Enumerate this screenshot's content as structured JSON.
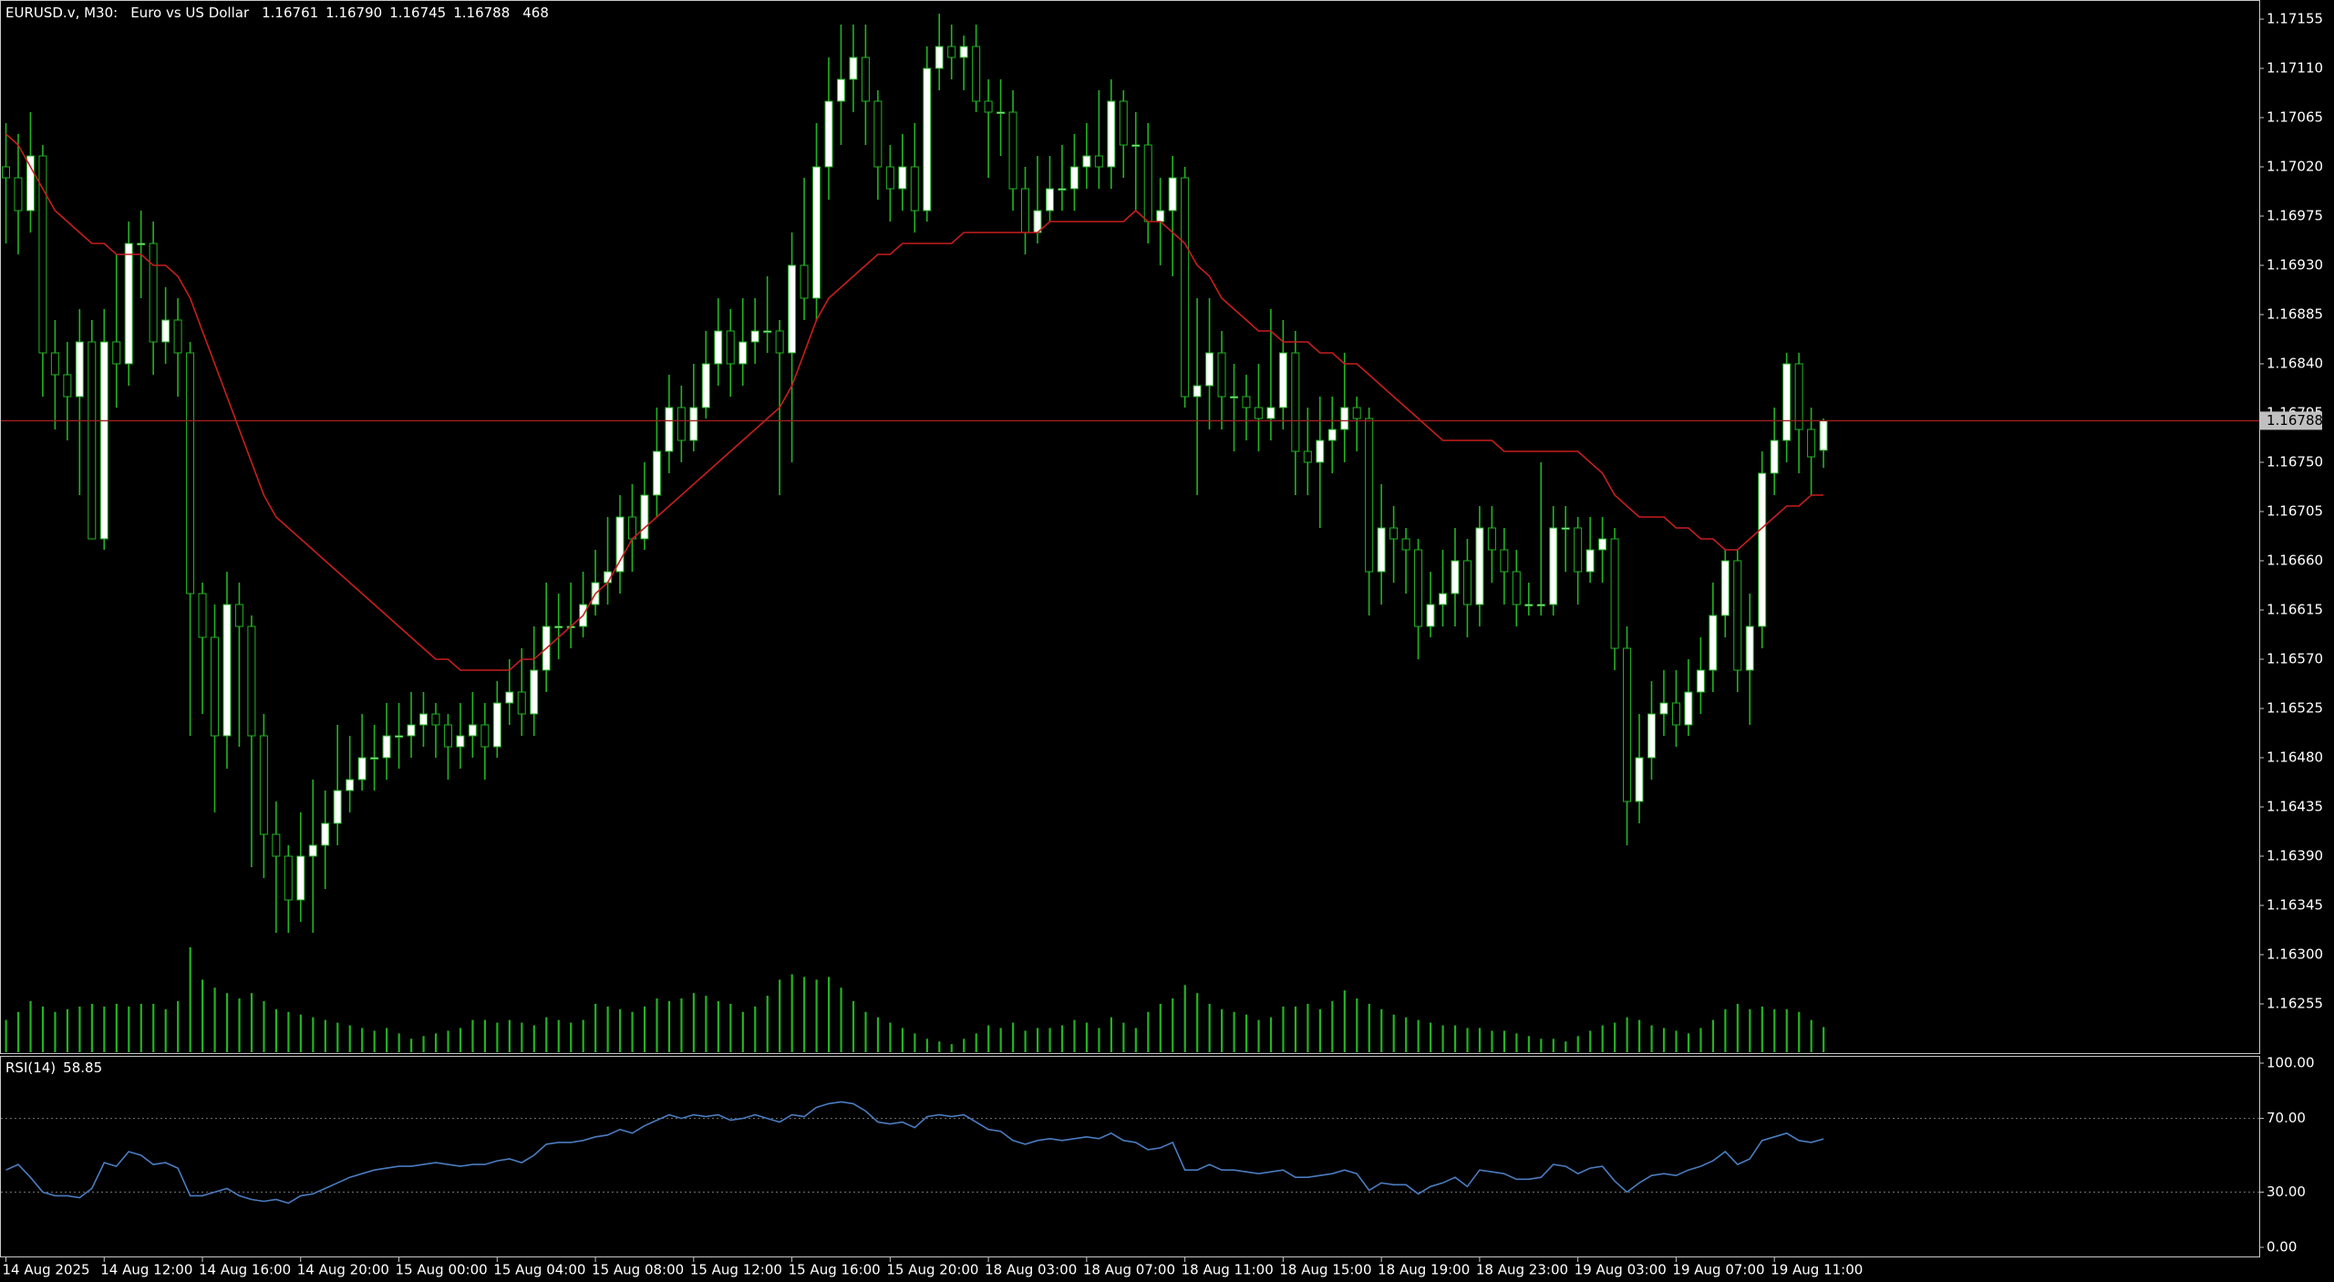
{
  "chart_data": [
    {
      "type": "candlestick",
      "title": "EURUSD.v, M30:",
      "subtitle": "Euro vs US Dollar",
      "last_high_label": "1.16790",
      "categories": [
        "14 Aug 2025",
        null,
        null,
        null,
        null,
        null,
        null,
        null,
        "14 Aug 12:00",
        null,
        null,
        null,
        null,
        null,
        null,
        null,
        "14 Aug 16:00",
        null,
        null,
        null,
        null,
        null,
        null,
        null,
        "14 Aug 20:00",
        null,
        null,
        null,
        null,
        null,
        null,
        null,
        "15 Aug 00:00",
        null,
        null,
        null,
        null,
        null,
        null,
        null,
        "15 Aug 04:00",
        null,
        null,
        null,
        null,
        null,
        null,
        null,
        "15 Aug 08:00",
        null,
        null,
        null,
        null,
        null,
        null,
        null,
        "15 Aug 12:00",
        null,
        null,
        null,
        null,
        null,
        null,
        null,
        "15 Aug 16:00",
        null,
        null,
        null,
        null,
        null,
        null,
        null,
        "15 Aug 20:00",
        null,
        null,
        null,
        null,
        null,
        null,
        null,
        "18 Aug 03:00",
        null,
        null,
        null,
        null,
        null,
        null,
        null,
        "18 Aug 07:00",
        null,
        null,
        null,
        null,
        null,
        null,
        null,
        "18 Aug 11:00",
        null,
        null,
        null,
        null,
        null,
        null,
        null,
        "18 Aug 15:00",
        null,
        null,
        null,
        null,
        null,
        null,
        null,
        "18 Aug 19:00",
        null,
        null,
        null,
        null,
        null,
        null,
        null,
        "18 Aug 23:00",
        null,
        null,
        null,
        null,
        null,
        null,
        null,
        "19 Aug 03:00",
        null,
        null,
        null,
        null,
        null,
        null,
        null,
        "19 Aug 07:00",
        null,
        null,
        null,
        null,
        null,
        null,
        null,
        "19 Aug 11:00",
        null,
        null,
        null,
        null
      ],
      "open": [
        1.1702,
        1.1701,
        1.1698,
        1.1703,
        1.1685,
        1.1683,
        1.1681,
        1.1686,
        1.1668,
        1.1686,
        1.1684,
        1.1695,
        1.1695,
        1.1686,
        1.1688,
        1.1685,
        1.1663,
        1.1659,
        1.165,
        1.1662,
        1.166,
        1.165,
        1.1641,
        1.1639,
        1.1635,
        1.1639,
        1.164,
        1.1642,
        1.1645,
        1.1646,
        1.1648,
        1.1648,
        1.165,
        1.165,
        1.1651,
        1.1652,
        1.1651,
        1.1649,
        1.165,
        1.1651,
        1.1649,
        1.1653,
        1.1654,
        1.1652,
        1.1656,
        1.166,
        1.166,
        1.166,
        1.1662,
        1.1664,
        1.1665,
        1.167,
        1.1668,
        1.1672,
        1.1676,
        1.168,
        1.1677,
        1.168,
        1.1684,
        1.1687,
        1.1684,
        1.1686,
        1.1687,
        1.1687,
        1.1685,
        1.1693,
        1.169,
        1.1702,
        1.1708,
        1.171,
        1.1712,
        1.1708,
        1.1702,
        1.17,
        1.1702,
        1.1698,
        1.1711,
        1.1713,
        1.1712,
        1.1713,
        1.1708,
        1.1707,
        1.1707,
        1.17,
        1.1696,
        1.1698,
        1.17,
        1.17,
        1.1702,
        1.1703,
        1.1702,
        1.1708,
        1.1704,
        1.1704,
        1.1697,
        1.1698,
        1.1701,
        1.1681,
        1.1682,
        1.1685,
        1.1681,
        1.1681,
        1.168,
        1.1679,
        1.168,
        1.1685,
        1.1676,
        1.1675,
        1.1677,
        1.1678,
        1.168,
        1.1679,
        1.1665,
        1.1669,
        1.1668,
        1.1667,
        1.166,
        1.1662,
        1.1663,
        1.1666,
        1.1662,
        1.1669,
        1.1667,
        1.1665,
        1.1662,
        1.1662,
        1.1662,
        1.1669,
        1.1669,
        1.1665,
        1.1667,
        1.1668,
        1.1658,
        1.1644,
        1.1648,
        1.1652,
        1.1653,
        1.1651,
        1.1654,
        1.1656,
        1.1661,
        1.1666,
        1.1656,
        1.166,
        1.1674,
        1.1677,
        1.1684,
        1.1678,
        1.16761
      ],
      "high": [
        1.1706,
        1.1705,
        1.1707,
        1.1704,
        1.1688,
        1.1686,
        1.1689,
        1.1688,
        1.1689,
        1.1694,
        1.1697,
        1.1698,
        1.1697,
        1.1691,
        1.169,
        1.1686,
        1.1664,
        1.1662,
        1.1665,
        1.1664,
        1.1661,
        1.1652,
        1.1644,
        1.164,
        1.1643,
        1.1646,
        1.1645,
        1.1651,
        1.165,
        1.1652,
        1.1651,
        1.1653,
        1.1653,
        1.1654,
        1.1654,
        1.1653,
        1.1652,
        1.1653,
        1.1654,
        1.1653,
        1.1655,
        1.1657,
        1.1658,
        1.166,
        1.1664,
        1.1663,
        1.1664,
        1.1665,
        1.1667,
        1.167,
        1.1672,
        1.1673,
        1.1675,
        1.168,
        1.1683,
        1.1682,
        1.1684,
        1.1687,
        1.169,
        1.1689,
        1.169,
        1.169,
        1.1692,
        1.1688,
        1.1696,
        1.1701,
        1.1706,
        1.1712,
        1.1715,
        1.1715,
        1.1715,
        1.1709,
        1.1704,
        1.1705,
        1.1706,
        1.1713,
        1.1716,
        1.1715,
        1.1714,
        1.1715,
        1.171,
        1.171,
        1.1709,
        1.1702,
        1.1703,
        1.1703,
        1.1704,
        1.1705,
        1.1706,
        1.1709,
        1.171,
        1.1709,
        1.1707,
        1.1706,
        1.1701,
        1.1703,
        1.1702,
        1.169,
        1.169,
        1.1687,
        1.1684,
        1.1683,
        1.1684,
        1.1689,
        1.1688,
        1.1687,
        1.168,
        1.1681,
        1.1681,
        1.1685,
        1.1681,
        1.168,
        1.1673,
        1.1671,
        1.1669,
        1.1668,
        1.1665,
        1.1667,
        1.1669,
        1.1668,
        1.1671,
        1.1671,
        1.1669,
        1.1667,
        1.1664,
        1.1675,
        1.1671,
        1.1671,
        1.167,
        1.167,
        1.167,
        1.1669,
        1.166,
        1.1652,
        1.1655,
        1.1656,
        1.1656,
        1.1657,
        1.1659,
        1.1664,
        1.1667,
        1.1667,
        1.1663,
        1.1676,
        1.168,
        1.1685,
        1.1685,
        1.168,
        1.1679
      ],
      "low": [
        1.1695,
        1.1694,
        1.1696,
        1.1681,
        1.1678,
        1.1677,
        1.1672,
        1.1668,
        1.1667,
        1.168,
        1.1682,
        1.169,
        1.1683,
        1.1684,
        1.1681,
        1.165,
        1.1652,
        1.1643,
        1.1647,
        1.1649,
        1.1638,
        1.1637,
        1.1632,
        1.1632,
        1.1633,
        1.1632,
        1.1636,
        1.164,
        1.1643,
        1.1645,
        1.1645,
        1.1646,
        1.1647,
        1.1648,
        1.1649,
        1.1648,
        1.1646,
        1.1647,
        1.1648,
        1.1646,
        1.1648,
        1.1651,
        1.165,
        1.165,
        1.1654,
        1.1657,
        1.1658,
        1.1659,
        1.1661,
        1.1662,
        1.1663,
        1.1665,
        1.1667,
        1.167,
        1.1674,
        1.1675,
        1.1676,
        1.1679,
        1.1682,
        1.1681,
        1.1682,
        1.1684,
        1.1685,
        1.1672,
        1.1675,
        1.1688,
        1.1688,
        1.1699,
        1.1704,
        1.1707,
        1.1704,
        1.1699,
        1.1697,
        1.1698,
        1.1696,
        1.1697,
        1.1709,
        1.171,
        1.1709,
        1.1707,
        1.1701,
        1.1703,
        1.1698,
        1.1694,
        1.1695,
        1.1697,
        1.1698,
        1.1698,
        1.17,
        1.17,
        1.17,
        1.1701,
        1.1698,
        1.1695,
        1.1693,
        1.1692,
        1.168,
        1.1672,
        1.1678,
        1.1678,
        1.1676,
        1.1677,
        1.1676,
        1.1677,
        1.1678,
        1.1672,
        1.1672,
        1.1669,
        1.1674,
        1.1675,
        1.1676,
        1.1661,
        1.1662,
        1.1664,
        1.1663,
        1.1657,
        1.1659,
        1.166,
        1.166,
        1.1659,
        1.166,
        1.1664,
        1.1662,
        1.166,
        1.1661,
        1.1661,
        1.1661,
        1.1665,
        1.1662,
        1.1664,
        1.1664,
        1.1656,
        1.164,
        1.1642,
        1.1646,
        1.165,
        1.1649,
        1.165,
        1.1652,
        1.1654,
        1.1659,
        1.1654,
        1.1651,
        1.1658,
        1.1672,
        1.1675,
        1.1674,
        1.1672,
        1.16745
      ],
      "close": [
        1.1701,
        1.1698,
        1.1703,
        1.1685,
        1.1683,
        1.1681,
        1.1686,
        1.1668,
        1.1686,
        1.1684,
        1.1695,
        1.1695,
        1.1686,
        1.1688,
        1.1685,
        1.1663,
        1.1659,
        1.165,
        1.1662,
        1.166,
        1.165,
        1.1641,
        1.1639,
        1.1635,
        1.1639,
        1.164,
        1.1642,
        1.1645,
        1.1646,
        1.1648,
        1.1648,
        1.165,
        1.165,
        1.1651,
        1.1652,
        1.1651,
        1.1649,
        1.165,
        1.1651,
        1.1649,
        1.1653,
        1.1654,
        1.1652,
        1.1656,
        1.166,
        1.166,
        1.166,
        1.1662,
        1.1664,
        1.1665,
        1.167,
        1.1668,
        1.1672,
        1.1676,
        1.168,
        1.1677,
        1.168,
        1.1684,
        1.1687,
        1.1684,
        1.1686,
        1.1687,
        1.1687,
        1.1685,
        1.1693,
        1.169,
        1.1702,
        1.1708,
        1.171,
        1.1712,
        1.1708,
        1.1702,
        1.17,
        1.1702,
        1.1698,
        1.1711,
        1.1713,
        1.1712,
        1.1713,
        1.1708,
        1.1707,
        1.1707,
        1.17,
        1.1696,
        1.1698,
        1.17,
        1.17,
        1.1702,
        1.1703,
        1.1702,
        1.1708,
        1.1704,
        1.1704,
        1.1697,
        1.1698,
        1.1701,
        1.1681,
        1.1682,
        1.1685,
        1.1681,
        1.1681,
        1.168,
        1.1679,
        1.168,
        1.1685,
        1.1676,
        1.1675,
        1.1677,
        1.1678,
        1.168,
        1.1679,
        1.1665,
        1.1669,
        1.1668,
        1.1667,
        1.166,
        1.1662,
        1.1663,
        1.1666,
        1.1662,
        1.1669,
        1.1667,
        1.1665,
        1.1662,
        1.1662,
        1.1662,
        1.1669,
        1.1669,
        1.1665,
        1.1667,
        1.1668,
        1.1658,
        1.1644,
        1.1648,
        1.1652,
        1.1653,
        1.1651,
        1.1654,
        1.1656,
        1.1661,
        1.1666,
        1.1656,
        1.166,
        1.1674,
        1.1677,
        1.1684,
        1.1678,
        1.16755,
        1.16788
      ],
      "volume": [
        600,
        750,
        950,
        850,
        750,
        800,
        850,
        900,
        850,
        900,
        850,
        900,
        900,
        800,
        950,
        1950,
        1350,
        1200,
        1100,
        1000,
        1100,
        950,
        800,
        750,
        700,
        650,
        600,
        550,
        500,
        450,
        400,
        450,
        350,
        250,
        300,
        350,
        400,
        450,
        600,
        600,
        550,
        600,
        550,
        500,
        650,
        600,
        550,
        600,
        900,
        850,
        800,
        750,
        850,
        1000,
        950,
        1000,
        1100,
        1050,
        950,
        900,
        750,
        850,
        1050,
        1350,
        1450,
        1400,
        1350,
        1400,
        1200,
        950,
        750,
        650,
        550,
        450,
        350,
        250,
        200,
        150,
        250,
        350,
        500,
        450,
        550,
        400,
        450,
        450,
        500,
        600,
        550,
        450,
        650,
        550,
        450,
        750,
        900,
        1000,
        1250,
        1100,
        900,
        800,
        750,
        700,
        600,
        650,
        850,
        850,
        900,
        800,
        950,
        1150,
        1000,
        900,
        800,
        700,
        650,
        600,
        550,
        500,
        500,
        450,
        450,
        400,
        400,
        350,
        300,
        250,
        250,
        200,
        300,
        400,
        500,
        550,
        650,
        600,
        500,
        450,
        400,
        350,
        450,
        600,
        800,
        900,
        800,
        850,
        800,
        800,
        750,
        600,
        468
      ],
      "ma": [
        1.1705,
        1.1704,
        1.1702,
        1.17,
        1.1698,
        1.1697,
        1.1696,
        1.1695,
        1.1695,
        1.1694,
        1.1694,
        1.1694,
        1.1693,
        1.1693,
        1.1692,
        1.169,
        1.1687,
        1.1684,
        1.1681,
        1.1678,
        1.1675,
        1.1672,
        1.167,
        1.1669,
        1.1668,
        1.1667,
        1.1666,
        1.1665,
        1.1664,
        1.1663,
        1.1662,
        1.1661,
        1.166,
        1.1659,
        1.1658,
        1.1657,
        1.1657,
        1.1656,
        1.1656,
        1.1656,
        1.1656,
        1.1656,
        1.1657,
        1.1657,
        1.1658,
        1.1659,
        1.166,
        1.1661,
        1.1663,
        1.1664,
        1.1666,
        1.1668,
        1.1669,
        1.167,
        1.1671,
        1.1672,
        1.1673,
        1.1674,
        1.1675,
        1.1676,
        1.1677,
        1.1678,
        1.1679,
        1.168,
        1.1682,
        1.1685,
        1.1688,
        1.169,
        1.1691,
        1.1692,
        1.1693,
        1.1694,
        1.1694,
        1.1695,
        1.1695,
        1.1695,
        1.1695,
        1.1695,
        1.1696,
        1.1696,
        1.1696,
        1.1696,
        1.1696,
        1.1696,
        1.1696,
        1.1697,
        1.1697,
        1.1697,
        1.1697,
        1.1697,
        1.1697,
        1.1697,
        1.1698,
        1.1697,
        1.1697,
        1.1696,
        1.1695,
        1.1693,
        1.1692,
        1.169,
        1.1689,
        1.1688,
        1.1687,
        1.1687,
        1.1686,
        1.1686,
        1.1686,
        1.1685,
        1.1685,
        1.1684,
        1.1684,
        1.1683,
        1.1682,
        1.1681,
        1.168,
        1.1679,
        1.1678,
        1.1677,
        1.1677,
        1.1677,
        1.1677,
        1.1677,
        1.1676,
        1.1676,
        1.1676,
        1.1676,
        1.1676,
        1.1676,
        1.1676,
        1.1675,
        1.1674,
        1.1672,
        1.1671,
        1.167,
        1.167,
        1.167,
        1.1669,
        1.1669,
        1.1668,
        1.1668,
        1.1667,
        1.1667,
        1.1668,
        1.1669,
        1.167,
        1.1671,
        1.1671,
        1.1672,
        1.1672
      ],
      "bull_color": "#ffffff",
      "bear_color": "#000000",
      "wick_color": "#22b422",
      "volume_color": "#22b422",
      "ma_color": "#c81e1e",
      "price_line_color": "#a02020",
      "ylim": [
        1.1621,
        1.1717
      ],
      "yticks": [
        1.17155,
        {
          "value": 1.1711,
          "label": "1.17110"
        },
        1.17065,
        {
          "value": 1.1702,
          "label": "1.17020"
        },
        1.16975,
        {
          "value": 1.1693,
          "label": "1.16930"
        },
        1.16885,
        {
          "value": 1.1684,
          "label": "1.16840"
        },
        1.16795,
        {
          "value": 1.1675,
          "label": "1.16750"
        },
        1.16705,
        {
          "value": 1.1666,
          "label": "1.16660"
        },
        1.16615,
        {
          "value": 1.1657,
          "label": "1.16570"
        },
        1.16525,
        {
          "value": 1.1648,
          "label": "1.16480"
        },
        1.16435,
        {
          "value": 1.1639,
          "label": "1.16390"
        },
        1.16345,
        {
          "value": 1.163,
          "label": "1.16300"
        },
        1.16255
      ]
    },
    {
      "type": "line",
      "title": "RSI(14)",
      "color": "#4a7cc0",
      "values": [
        42,
        45,
        38,
        30,
        28,
        28,
        27,
        32,
        46,
        44,
        52,
        50,
        45,
        46,
        43,
        28,
        28,
        30,
        32,
        28,
        26,
        25,
        26,
        24,
        28,
        29,
        32,
        35,
        38,
        40,
        42,
        43,
        44,
        44,
        45,
        46,
        45,
        44,
        45,
        45,
        47,
        48,
        46,
        50,
        56,
        57,
        57,
        58,
        60,
        61,
        64,
        62,
        66,
        69,
        72,
        70,
        72,
        71,
        72,
        69,
        70,
        72,
        70,
        68,
        72,
        71,
        76,
        78,
        79,
        78,
        74,
        68,
        67,
        68,
        65,
        71,
        72,
        71,
        72,
        68,
        64,
        63,
        58,
        56,
        58,
        59,
        58,
        59,
        60,
        59,
        62,
        58,
        57,
        53,
        54,
        57,
        42,
        42,
        45,
        42,
        42,
        41,
        40,
        41,
        42,
        38,
        38,
        39,
        40,
        42,
        40,
        31,
        35,
        34,
        34,
        29,
        33,
        35,
        38,
        33,
        42,
        41,
        40,
        37,
        37,
        38,
        45,
        44,
        40,
        43,
        44,
        36,
        30,
        35,
        39,
        40,
        39,
        42,
        44,
        47,
        52,
        45,
        48,
        58,
        60,
        62,
        58,
        57,
        58.85
      ],
      "ylim": [
        0,
        100
      ],
      "yticks": [
        {
          "value": 100,
          "label": "100.00"
        },
        {
          "value": 70,
          "label": "70.00"
        },
        {
          "value": 30,
          "label": "30.00"
        },
        {
          "value": 0,
          "label": "0.00"
        }
      ]
    }
  ]
}
